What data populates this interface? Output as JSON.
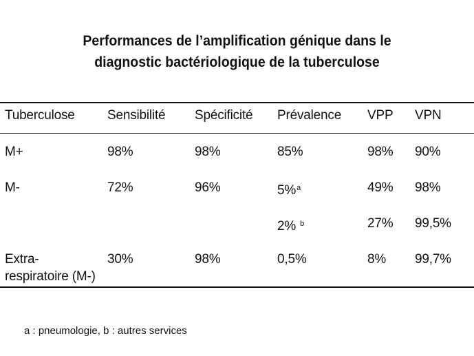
{
  "title": {
    "line1": "Performances de l’amplification génique dans le",
    "line2": "diagnostic bactériologique de la tuberculose"
  },
  "table": {
    "headers": [
      "Tuberculose",
      "Sensibilité",
      "Spécificité",
      "Prévalence",
      "VPP",
      "VPN"
    ],
    "rows": [
      {
        "tuberculose": "M+",
        "sensibilite": "98%",
        "specificite": "98%",
        "prevalence": "85%",
        "prevalence_note": "",
        "vpp": "98%",
        "vpn": "90%"
      },
      {
        "tuberculose": "M-",
        "sensibilite": "72%",
        "specificite": "96%",
        "prevalence": "5%",
        "prevalence_note": "a",
        "vpp": "49%",
        "vpn": "98%"
      },
      {
        "tuberculose": "",
        "sensibilite": "",
        "specificite": "",
        "prevalence": "2%",
        "prevalence_note": "b",
        "vpp": "27%",
        "vpn": "99,5%"
      },
      {
        "tuberculose_line1": "Extra-",
        "tuberculose_line2": "respiratoire (M-)",
        "sensibilite": "30%",
        "specificite": "98%",
        "prevalence": "0,5%",
        "prevalence_note": "",
        "vpp": "8%",
        "vpn": "99,7%"
      }
    ]
  },
  "footnote": "a : pneumologie, b : autres services"
}
